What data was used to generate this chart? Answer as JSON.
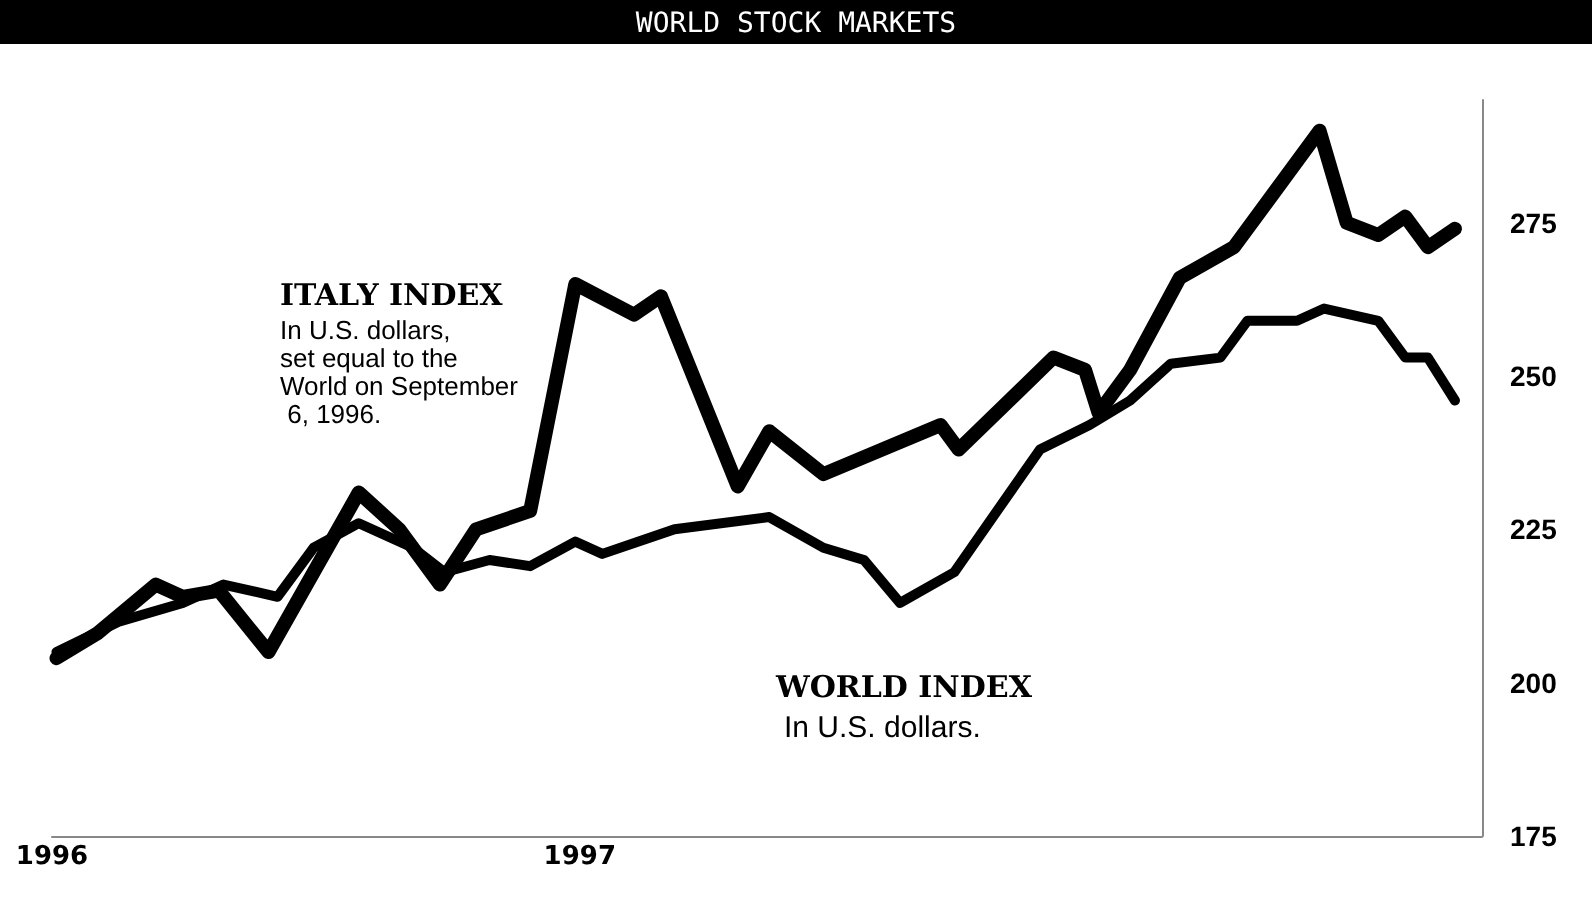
{
  "chart_data": {
    "type": "line",
    "title": "WORLD STOCK MARKETS",
    "series": [
      {
        "name": "ITALY INDEX",
        "color": "#000000",
        "x": [
          "1996-09-07",
          "1996-09-16",
          "1996-09-29",
          "1996-10-05",
          "1996-10-13",
          "1996-10-24",
          "1996-11-03",
          "1996-11-13",
          "1996-11-22",
          "1996-12-01",
          "1996-12-09",
          "1996-12-21",
          "1996-12-31",
          "1997-01-13",
          "1997-01-19",
          "1997-02-05",
          "1997-02-12",
          "1997-02-24",
          "1997-03-22",
          "1997-03-26",
          "1997-04-16",
          "1997-04-23",
          "1997-04-26",
          "1997-05-03",
          "1997-05-14",
          "1997-05-26",
          "1997-06-14",
          "1997-06-20",
          "1997-06-27",
          "1997-07-03",
          "1997-07-08",
          "1997-07-14"
        ],
        "values": [
          204,
          208,
          216,
          214,
          215,
          205,
          218,
          231,
          225,
          216,
          225,
          228,
          265,
          260,
          263,
          232,
          241,
          234,
          242,
          238,
          253,
          251,
          244,
          251,
          266,
          271,
          290,
          275,
          273,
          276,
          271,
          274
        ]
      },
      {
        "name": "WORLD INDEX",
        "color": "#000000",
        "x": [
          "1996-09-07",
          "1996-09-21",
          "1996-10-05",
          "1996-10-14",
          "1996-10-26",
          "1996-11-03",
          "1996-11-13",
          "1996-11-25",
          "1996-12-02",
          "1996-12-12",
          "1996-12-21",
          "1996-12-31",
          "1997-01-06",
          "1997-01-22",
          "1997-02-12",
          "1997-02-24",
          "1997-03-05",
          "1997-03-13",
          "1997-03-25",
          "1997-04-13",
          "1997-04-24",
          "1997-05-03",
          "1997-05-12",
          "1997-05-23",
          "1997-05-29",
          "1997-06-09",
          "1997-06-15",
          "1997-06-27",
          "1997-07-03",
          "1997-07-08",
          "1997-07-14"
        ],
        "values": [
          205,
          210,
          213,
          216,
          214,
          222,
          226,
          222,
          218,
          220,
          219,
          223,
          221,
          225,
          227,
          222,
          220,
          213,
          218,
          238,
          242,
          246,
          252,
          253,
          259,
          259,
          261,
          259,
          253,
          253,
          246
        ]
      }
    ],
    "annotations": [
      "In U.S. dollars, set equal to the World on September 6, 1996.",
      "In U.S. dollars."
    ],
    "xlim": [
      "1996-09-06",
      "1997-07-20"
    ],
    "xticks": [
      {
        "value": "1996-09-06",
        "label": "1996"
      },
      {
        "value": "1997-01-01",
        "label": "1997"
      }
    ],
    "ylim": [
      175,
      295
    ],
    "yticks": [
      175,
      200,
      225,
      250,
      275
    ],
    "grid": false,
    "legend": false,
    "marker": "none",
    "line_style": "solid"
  }
}
